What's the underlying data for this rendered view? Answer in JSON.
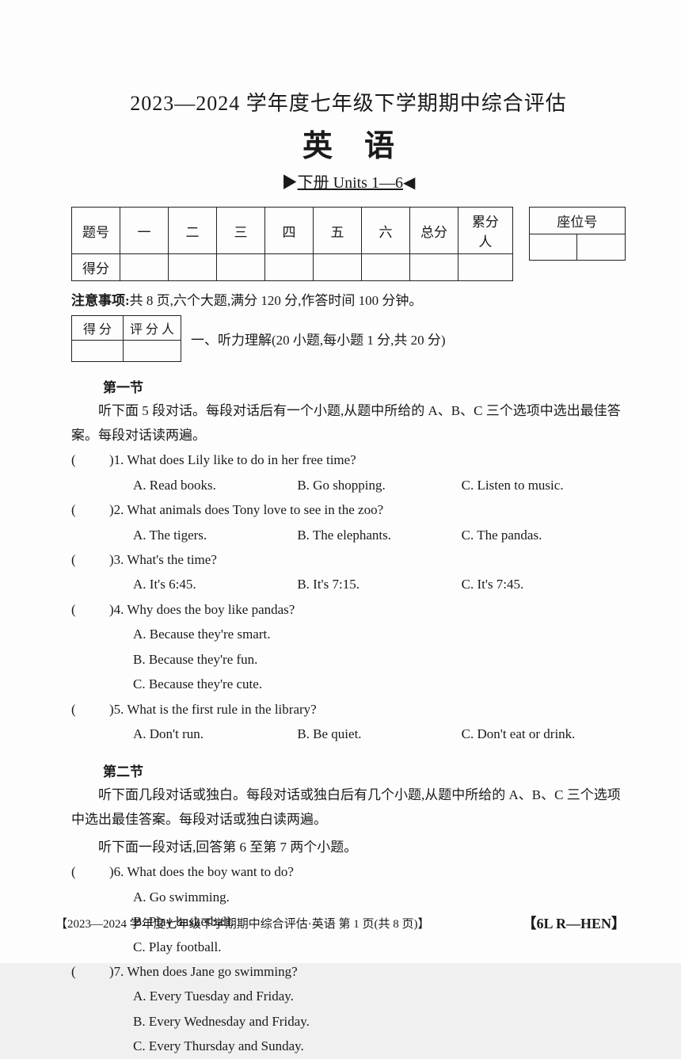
{
  "header": {
    "title_line1": "2023—2024 学年度七年级下学期期中综合评估",
    "title_line2": "英语",
    "subtitle_prefix": "▶",
    "subtitle_text": "下册 Units 1—6",
    "subtitle_suffix": "◀"
  },
  "score_table": {
    "row1": [
      "题号",
      "一",
      "二",
      "三",
      "四",
      "五",
      "六",
      "总分",
      "累分人"
    ],
    "row2_label": "得分"
  },
  "seat_table": {
    "label": "座位号"
  },
  "notice": {
    "label": "注意事项:",
    "text": "共 8 页,六个大题,满分 120 分,作答时间 100 分钟。"
  },
  "scorebox": {
    "c1": "得 分",
    "c2": "评 分 人"
  },
  "section_main": "一、听力理解(20 小题,每小题 1 分,共 20 分)",
  "section1": {
    "label": "第一节",
    "intro": "听下面 5 段对话。每段对话后有一个小题,从题中所给的 A、B、C 三个选项中选出最佳答案。每段对话读两遍。"
  },
  "q1": {
    "stem": ")1. What does Lily like to do in her free time?",
    "A": "A. Read books.",
    "B": "B. Go shopping.",
    "C": "C. Listen to music."
  },
  "q2": {
    "stem": ")2. What animals does Tony love to see in the zoo?",
    "A": "A. The tigers.",
    "B": "B. The elephants.",
    "C": "C. The pandas."
  },
  "q3": {
    "stem": ")3. What's the time?",
    "A": "A. It's 6:45.",
    "B": "B. It's 7:15.",
    "C": "C. It's 7:45."
  },
  "q4": {
    "stem": ")4. Why does the boy like pandas?",
    "A": "A. Because they're smart.",
    "B": "B. Because they're fun.",
    "C": "C. Because they're cute."
  },
  "q5": {
    "stem": ")5. What is the first rule in the library?",
    "A": "A. Don't run.",
    "B": "B. Be quiet.",
    "C": "C. Don't eat or drink."
  },
  "section2": {
    "label": "第二节",
    "intro1": "听下面几段对话或独白。每段对话或独白后有几个小题,从题中所给的 A、B、C 三个选项中选出最佳答案。每段对话或独白读两遍。",
    "intro2": "听下面一段对话,回答第 6 至第 7 两个小题。"
  },
  "q6": {
    "stem": ")6. What does the boy want to do?",
    "A": "A. Go swimming.",
    "B": "B. Play basketball.",
    "C": "C. Play football."
  },
  "q7": {
    "stem": ")7. When does Jane go swimming?",
    "A": "A. Every Tuesday and Friday.",
    "B": "B. Every Wednesday and Friday.",
    "C": "C. Every Thursday and Sunday."
  },
  "footer": {
    "left": "【2023—2024 学年度七年级下学期期中综合评估·英语  第 1 页(共 8 页)】",
    "right": "【6L R—HEN】"
  }
}
